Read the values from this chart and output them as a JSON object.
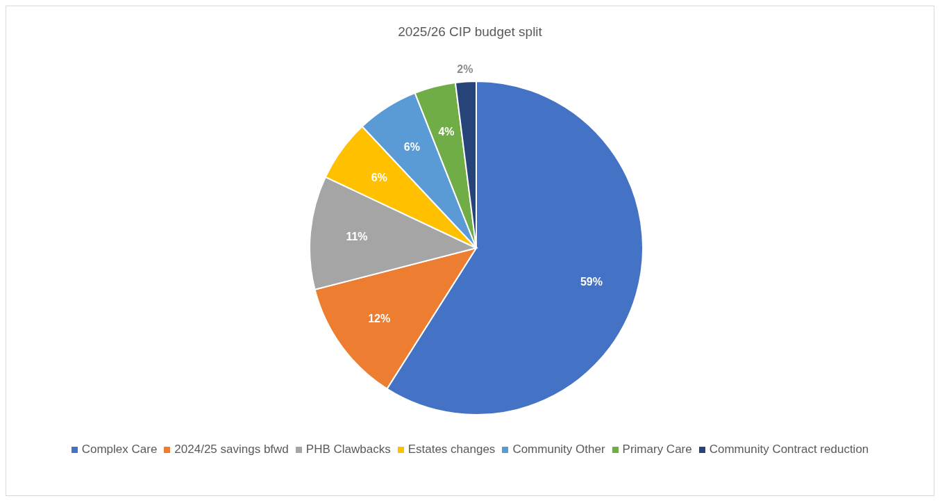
{
  "chart_data": {
    "type": "pie",
    "title": "2025/26 CIP budget split",
    "categories": [
      "Complex Care",
      "2024/25 savings bfwd",
      "PHB Clawbacks",
      "Estates changes",
      "Community Other",
      "Primary Care",
      "Community Contract reduction"
    ],
    "values": [
      59,
      12,
      11,
      6,
      6,
      4,
      2
    ],
    "colors": [
      "#4472c4",
      "#ed7d31",
      "#a5a5a5",
      "#ffc000",
      "#5b9bd5",
      "#70ad47",
      "#264478"
    ],
    "value_labels": [
      "59%",
      "12%",
      "11%",
      "6%",
      "6%",
      "4%",
      "2%"
    ],
    "legend": "bottom"
  }
}
